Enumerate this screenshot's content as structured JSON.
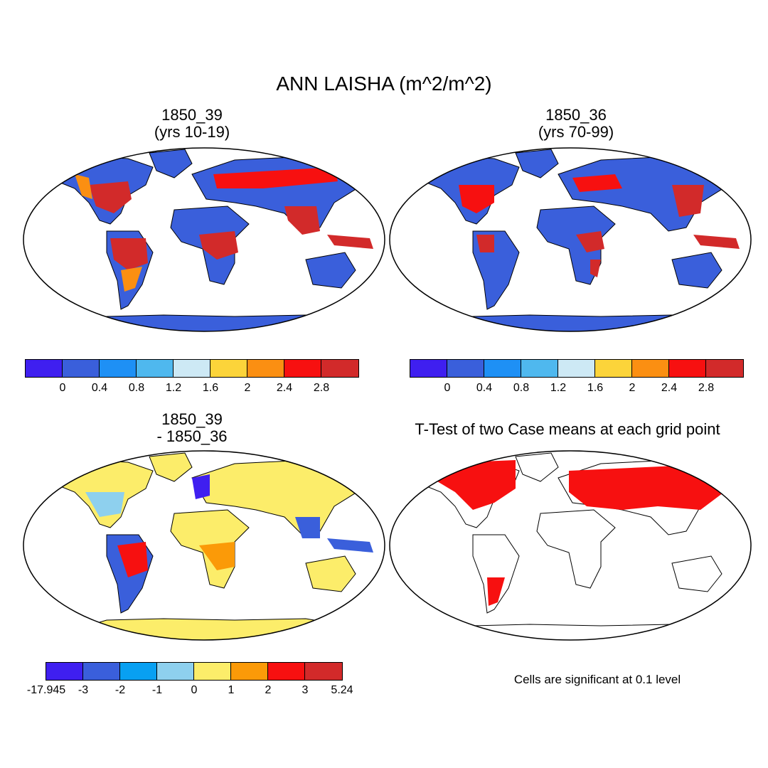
{
  "title": "ANN LAISHA (m^2/m^2)",
  "panels": [
    {
      "title_line1": "1850_39",
      "title_line2": "(yrs 10-19)"
    },
    {
      "title_line1": "1850_36",
      "title_line2": "(yrs 70-99)"
    },
    {
      "title_line1": "1850_39",
      "title_line2": "- 1850_36"
    },
    {
      "title_line1": "T-Test of two Case means at each grid point"
    }
  ],
  "colorbar_abs": {
    "colors": [
      "#3f1ff0",
      "#3a5fdb",
      "#1e90f5",
      "#4fb8ee",
      "#cde9f5",
      "#fcd43a",
      "#fb8f12",
      "#f71010",
      "#d22a2a"
    ],
    "ticks": [
      "0",
      "0.4",
      "0.8",
      "1.2",
      "1.6",
      "2",
      "2.4",
      "2.8"
    ]
  },
  "colorbar_diff": {
    "colors": [
      "#3f1ff0",
      "#3a5fdb",
      "#08a0f2",
      "#8ed0ee",
      "#fced6a",
      "#fb9a08",
      "#f71010",
      "#d22a2a"
    ],
    "ticks": [
      "-17.945",
      "-3",
      "-2",
      "-1",
      "0",
      "1",
      "2",
      "3",
      "5.24"
    ]
  },
  "significance_note": "Cells are significant at 0.1 level",
  "map_colors": {
    "ocean": "#ffffff",
    "border": "#000000"
  }
}
